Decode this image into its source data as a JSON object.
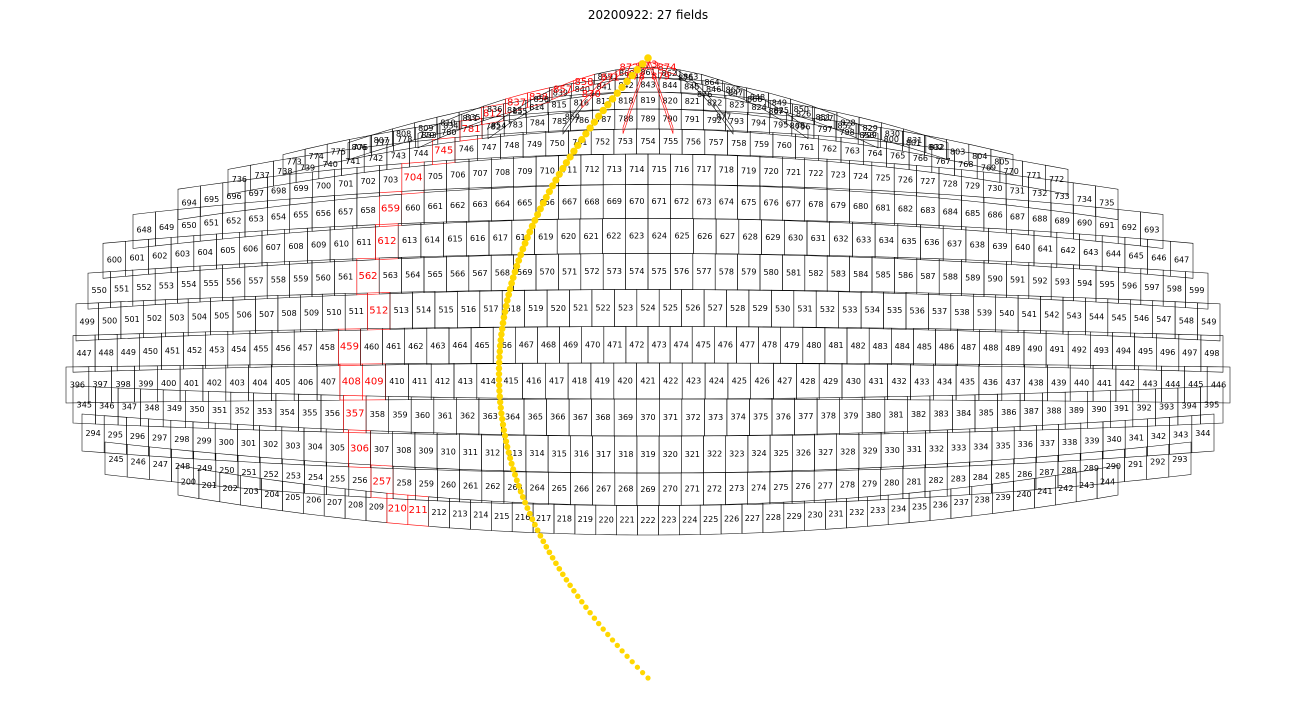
{
  "title": "20200922: 27 fields",
  "colors": {
    "grid": "#000000",
    "highlight": "#ff0000",
    "track": "#ffd700",
    "background": "#ffffff"
  },
  "chart_data": {
    "type": "scatter",
    "projection": "sky-map of survey field grid",
    "rows": [
      {
        "first": 200,
        "last": 244
      },
      {
        "first": 245,
        "last": 293
      },
      {
        "first": 294,
        "last": 344
      },
      {
        "first": 345,
        "last": 395
      },
      {
        "first": 396,
        "last": 446
      },
      {
        "first": 447,
        "last": 498
      },
      {
        "first": 499,
        "last": 549
      },
      {
        "first": 550,
        "last": 599
      },
      {
        "first": 600,
        "last": 647
      },
      {
        "first": 648,
        "last": 693
      },
      {
        "first": 694,
        "last": 735
      },
      {
        "first": 736,
        "last": 772
      },
      {
        "first": 773,
        "last": 805
      },
      {
        "first": 806,
        "last": 832
      },
      {
        "first": 833,
        "last": 853
      },
      {
        "first": 854,
        "last": 868
      },
      {
        "first": 869,
        "last": 877
      },
      {
        "first": 878,
        "last": 879
      }
    ],
    "highlighted_fields": [
      210,
      211,
      257,
      306,
      357,
      408,
      409,
      459,
      512,
      562,
      612,
      659,
      704,
      745,
      781,
      812,
      837,
      838,
      857,
      858,
      870,
      871,
      872,
      873,
      874,
      878,
      879
    ],
    "field_count": 27
  }
}
